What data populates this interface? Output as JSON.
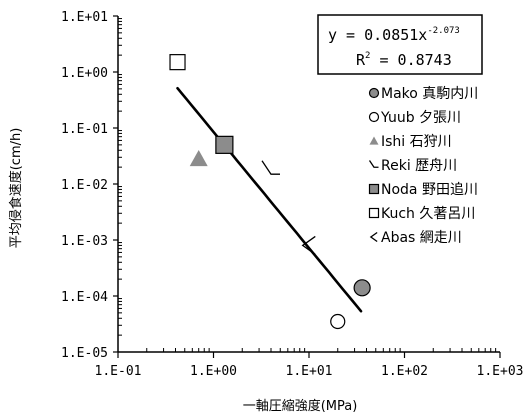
{
  "chart_data": {
    "type": "scatter",
    "xscale": "log",
    "yscale": "log",
    "xlim": [
      0.1,
      1000
    ],
    "ylim": [
      1e-05,
      10
    ],
    "grid": false,
    "legend_position": "right",
    "xlabel": "一軸圧縮強度(MPa)",
    "ylabel": "平均侵食速度(cm/h)",
    "x_ticks": [
      "1.E-01",
      "1.E+00",
      "1.E+01",
      "1.E+02",
      "1.E+03"
    ],
    "y_ticks": [
      "1.E+01",
      "1.E+00",
      "1.E-01",
      "1.E-02",
      "1.E-03",
      "1.E-04",
      "1.E-05"
    ],
    "annotation": {
      "equation_base": "y = 0.0851x",
      "equation_exponent": "-2.073",
      "r2_label": "R",
      "r2_sup": "2",
      "r2_value": " = 0.8743"
    },
    "trendline": {
      "coefficient": 0.0851,
      "exponent": -2.073,
      "x_range": [
        0.42,
        35
      ]
    },
    "series": [
      {
        "name": "Mako 真駒内川",
        "marker": "circle-filled",
        "points": [
          [
            36,
            0.00014
          ]
        ]
      },
      {
        "name": "Yuub 夕張川",
        "marker": "circle-open",
        "points": [
          [
            20,
            3.5e-05
          ]
        ]
      },
      {
        "name": "Ishi 石狩川",
        "marker": "triangle-filled",
        "points": [
          [
            0.7,
            0.028
          ]
        ]
      },
      {
        "name": "Reki 歴舟川",
        "marker": "corner",
        "points": [
          [
            4,
            0.018
          ]
        ]
      },
      {
        "name": "Noda 野田追川",
        "marker": "square-filled",
        "points": [
          [
            1.3,
            0.05
          ]
        ]
      },
      {
        "name": "Kuch 久著呂川",
        "marker": "square-open",
        "points": [
          [
            0.42,
            1.5
          ]
        ]
      },
      {
        "name": "Abas 網走川",
        "marker": "chevron",
        "points": [
          [
            10,
            0.0008
          ]
        ]
      }
    ],
    "colors": {
      "filled_marker": "#8c8c8c",
      "line": "#000000",
      "axis": "#000000"
    }
  }
}
